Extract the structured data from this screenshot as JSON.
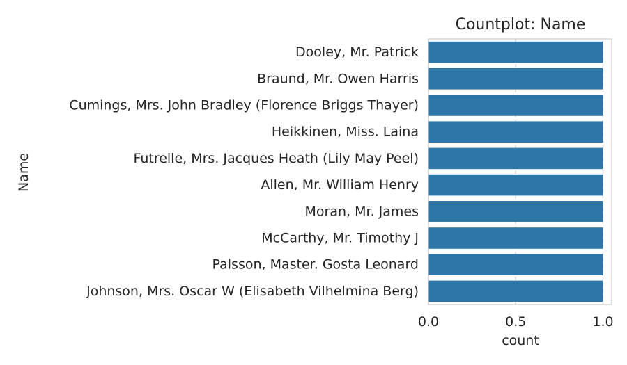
{
  "chart_data": {
    "type": "bar",
    "orientation": "horizontal",
    "title": "Countplot: Name",
    "xlabel": "count",
    "ylabel": "Name",
    "categories": [
      "Dooley, Mr. Patrick",
      "Braund, Mr. Owen Harris",
      "Cumings, Mrs. John Bradley (Florence Briggs Thayer)",
      "Heikkinen, Miss. Laina",
      "Futrelle, Mrs. Jacques Heath (Lily May Peel)",
      "Allen, Mr. William Henry",
      "Moran, Mr. James",
      "McCarthy, Mr. Timothy J",
      "Palsson, Master. Gosta Leonard",
      "Johnson, Mrs. Oscar W (Elisabeth Vilhelmina Berg)"
    ],
    "values": [
      1,
      1,
      1,
      1,
      1,
      1,
      1,
      1,
      1,
      1
    ],
    "xlim": [
      0,
      1.05
    ],
    "xticks": [
      0.0,
      0.5,
      1.0
    ],
    "xtick_labels": [
      "0.0",
      "0.5",
      "1.0"
    ],
    "grid": "vertical dashed",
    "bar_color": "#2e75a8",
    "grid_color": "#cccccc",
    "spine_color": "#cccccc",
    "text_color": "#262626"
  }
}
